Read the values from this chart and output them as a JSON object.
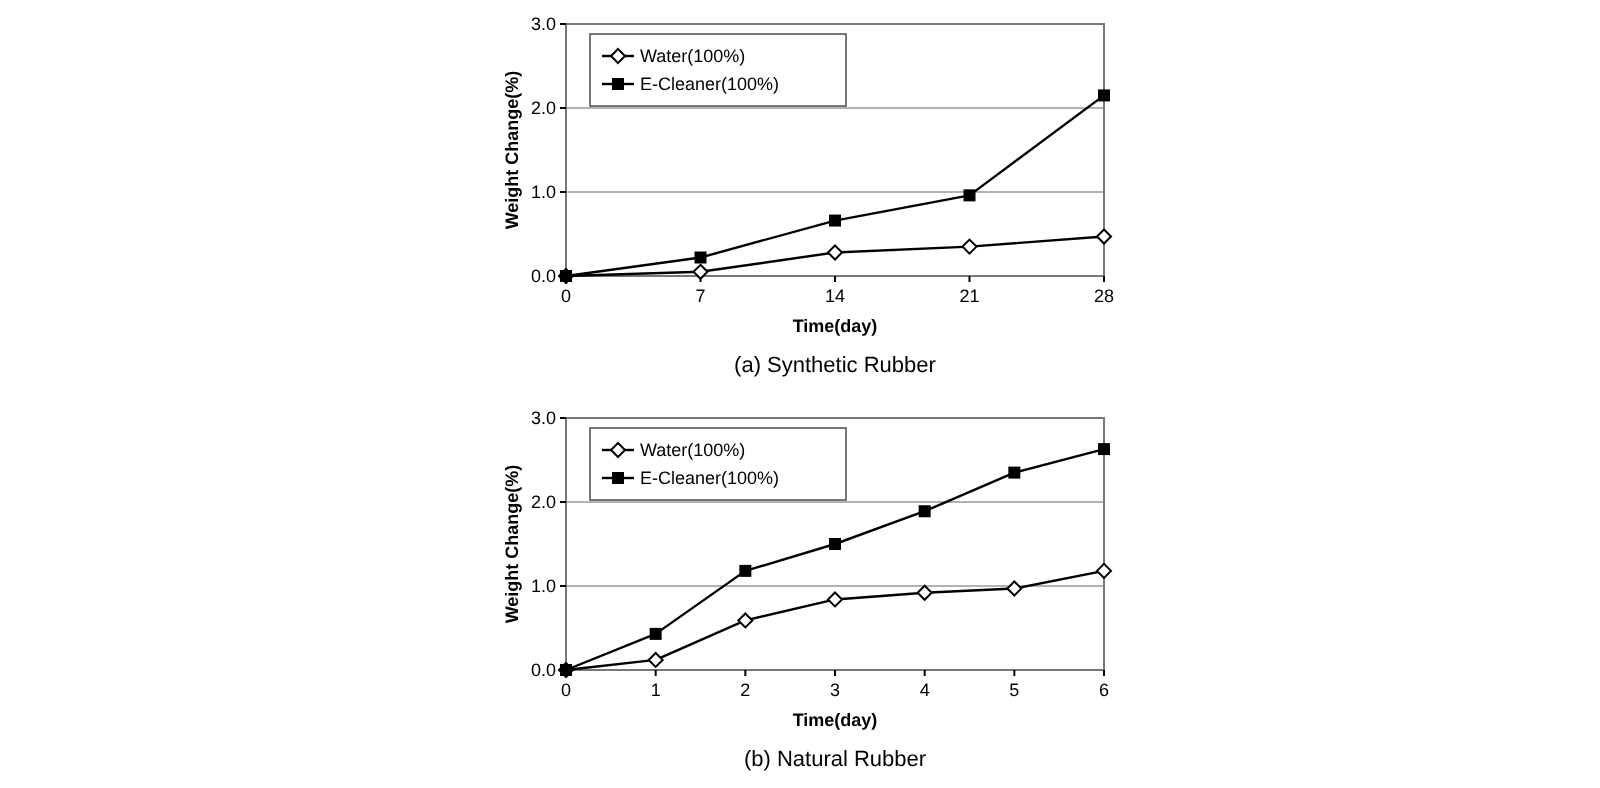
{
  "chart_data": [
    {
      "type": "line",
      "title": "(a) Synthetic Rubber",
      "xlabel": "Time(day)",
      "ylabel": "Weight Change(%)",
      "x": [
        0,
        7,
        14,
        21,
        28
      ],
      "xlim": [
        0,
        28
      ],
      "xticks": [
        0,
        7,
        14,
        21,
        28
      ],
      "ylim": [
        0,
        3
      ],
      "yticks": [
        {
          "value": 0,
          "label": "0.0"
        },
        {
          "value": 1,
          "label": "1.0"
        },
        {
          "value": 2,
          "label": "2.0"
        },
        {
          "value": 3,
          "label": "3.0"
        }
      ],
      "grid": "y",
      "legend": "top left",
      "line_style": "solid",
      "series": [
        {
          "name": "Water(100%)",
          "color": "#000000",
          "marker": "diamond",
          "values": [
            0,
            0.05,
            0.28,
            0.35,
            0.47
          ]
        },
        {
          "name": "E-Cleaner(100%)",
          "color": "#000000",
          "marker": "square",
          "values": [
            0,
            0.22,
            0.66,
            0.96,
            2.15
          ]
        }
      ]
    },
    {
      "type": "line",
      "title": "(b) Natural Rubber",
      "xlabel": "Time(day)",
      "ylabel": "Weight Change(%)",
      "x": [
        0,
        1,
        2,
        3,
        4,
        5,
        6
      ],
      "xlim": [
        0,
        6
      ],
      "xticks": [
        0,
        1,
        2,
        3,
        4,
        5,
        6
      ],
      "ylim": [
        0,
        3
      ],
      "yticks": [
        {
          "value": 0,
          "label": "0.0"
        },
        {
          "value": 1,
          "label": "1.0"
        },
        {
          "value": 2,
          "label": "2.0"
        },
        {
          "value": 3,
          "label": "3.0"
        }
      ],
      "grid": "y",
      "legend": "top left",
      "line_style": "solid",
      "series": [
        {
          "name": "Water(100%)",
          "color": "#000000",
          "marker": "diamond",
          "values": [
            0,
            0.12,
            0.59,
            0.84,
            0.92,
            0.97,
            1.18
          ]
        },
        {
          "name": "E-Cleaner(100%)",
          "color": "#000000",
          "marker": "square",
          "values": [
            0,
            0.43,
            1.18,
            1.5,
            1.89,
            2.35,
            2.63
          ]
        }
      ]
    }
  ]
}
